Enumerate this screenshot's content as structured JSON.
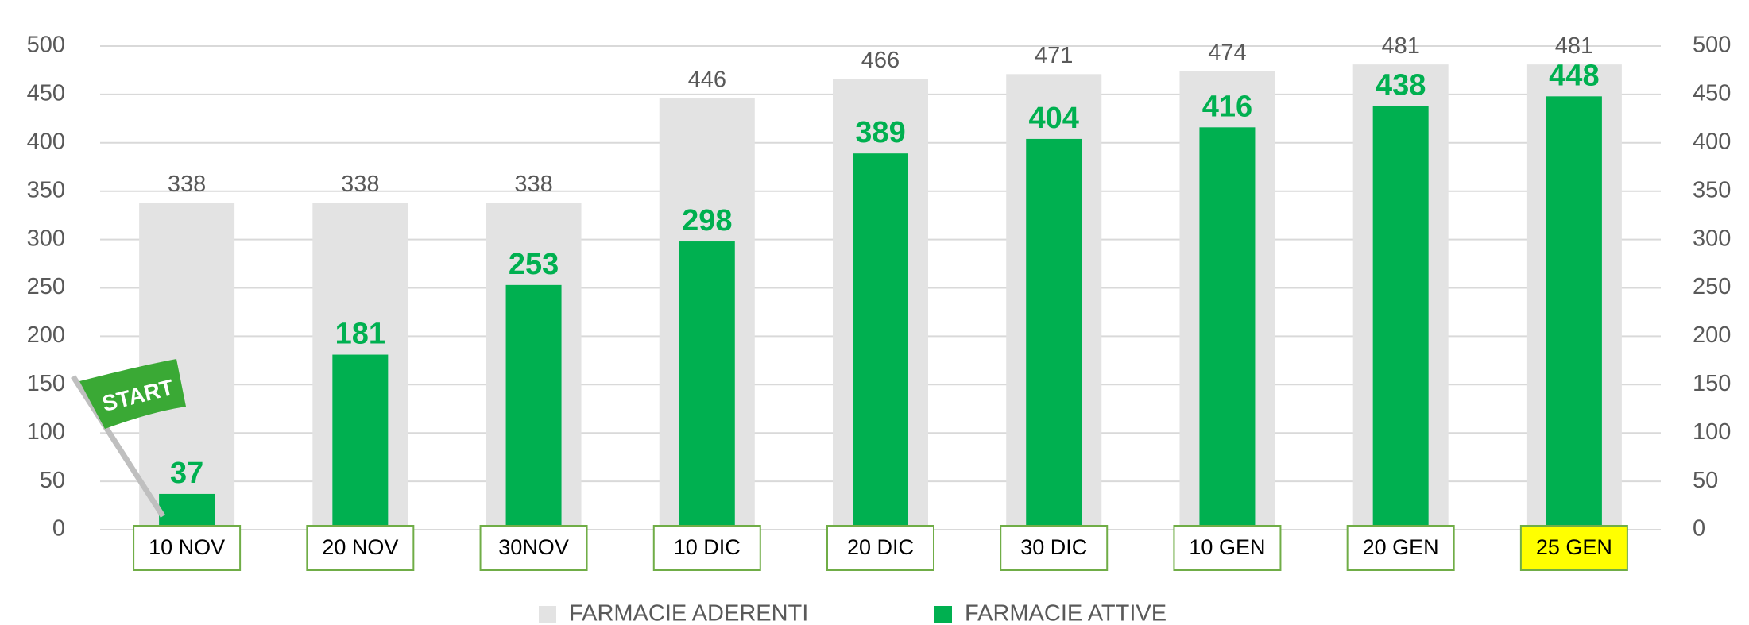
{
  "chart_data": {
    "type": "bar",
    "categories": [
      "10 NOV",
      "20 NOV",
      "30NOV",
      "10 DIC",
      "20 DIC",
      "30 DIC",
      "10 GEN",
      "20 GEN",
      "25 GEN"
    ],
    "category_box_colors": [
      "#ffffff",
      "#ffffff",
      "#ffffff",
      "#ffffff",
      "#ffffff",
      "#ffffff",
      "#ffffff",
      "#ffffff",
      "#ffff00"
    ],
    "series": [
      {
        "name": "FARMACIE ADERENTI",
        "color": "#e3e3e3",
        "label_color": "#595959",
        "values": [
          338,
          338,
          338,
          446,
          466,
          471,
          474,
          481,
          481
        ]
      },
      {
        "name": "FARMACIE ATTIVE",
        "color": "#00b050",
        "label_color": "#00b050",
        "values": [
          37,
          181,
          253,
          298,
          389,
          404,
          416,
          438,
          448
        ]
      }
    ],
    "ylim": [
      0,
      500
    ],
    "yticks": [
      0,
      50,
      100,
      150,
      200,
      250,
      300,
      350,
      400,
      450,
      500
    ],
    "y2lim": [
      0,
      500
    ],
    "y2ticks": [
      0,
      50,
      100,
      150,
      200,
      250,
      300,
      350,
      400,
      450,
      500
    ],
    "grid": true,
    "legend": "bottom",
    "annotation": "START"
  }
}
